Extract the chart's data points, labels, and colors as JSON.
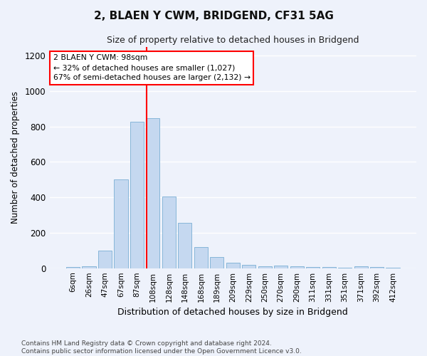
{
  "title": "2, BLAEN Y CWM, BRIDGEND, CF31 5AG",
  "subtitle": "Size of property relative to detached houses in Bridgend",
  "xlabel": "Distribution of detached houses by size in Bridgend",
  "ylabel": "Number of detached properties",
  "bar_color": "#c5d8f0",
  "bar_edge_color": "#7aafd4",
  "categories": [
    "6sqm",
    "26sqm",
    "47sqm",
    "67sqm",
    "87sqm",
    "108sqm",
    "128sqm",
    "148sqm",
    "168sqm",
    "189sqm",
    "209sqm",
    "229sqm",
    "250sqm",
    "270sqm",
    "290sqm",
    "311sqm",
    "331sqm",
    "351sqm",
    "371sqm",
    "392sqm",
    "412sqm"
  ],
  "values": [
    8,
    12,
    100,
    500,
    825,
    848,
    405,
    255,
    120,
    65,
    30,
    20,
    12,
    15,
    10,
    8,
    5,
    3,
    10,
    5,
    3
  ],
  "ylim": [
    0,
    1250
  ],
  "yticks": [
    0,
    200,
    400,
    600,
    800,
    1000,
    1200
  ],
  "marker_label": "2 BLAEN Y CWM: 98sqm",
  "annotation_line1": "← 32% of detached houses are smaller (1,027)",
  "annotation_line2": "67% of semi-detached houses are larger (2,132) →",
  "red_line_bar_index": 4.62,
  "footer_line1": "Contains HM Land Registry data © Crown copyright and database right 2024.",
  "footer_line2": "Contains public sector information licensed under the Open Government Licence v3.0.",
  "background_color": "#eef2fb",
  "plot_bg_color": "#eef2fb",
  "grid_color": "#ffffff"
}
